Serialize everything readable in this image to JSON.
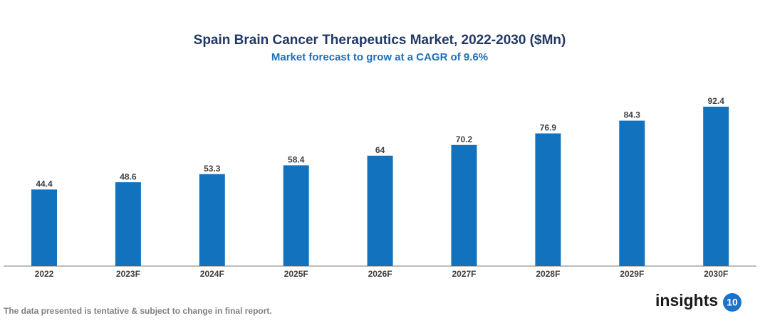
{
  "chart_data": {
    "type": "bar",
    "title": "Spain Brain Cancer Therapeutics Market, 2022-2030 ($Mn)",
    "subtitle": "Market forecast to grow at a CAGR of 9.6%",
    "categories": [
      "2022",
      "2023F",
      "2024F",
      "2025F",
      "2026F",
      "2027F",
      "2028F",
      "2029F",
      "2030F"
    ],
    "values": [
      44.4,
      48.6,
      53.3,
      58.4,
      64,
      70.2,
      76.9,
      84.3,
      92.4
    ],
    "color": "#1272be"
  },
  "footnote": "The data presented is tentative & subject to change in final report.",
  "logo": {
    "text": "insights",
    "badge": "10"
  }
}
